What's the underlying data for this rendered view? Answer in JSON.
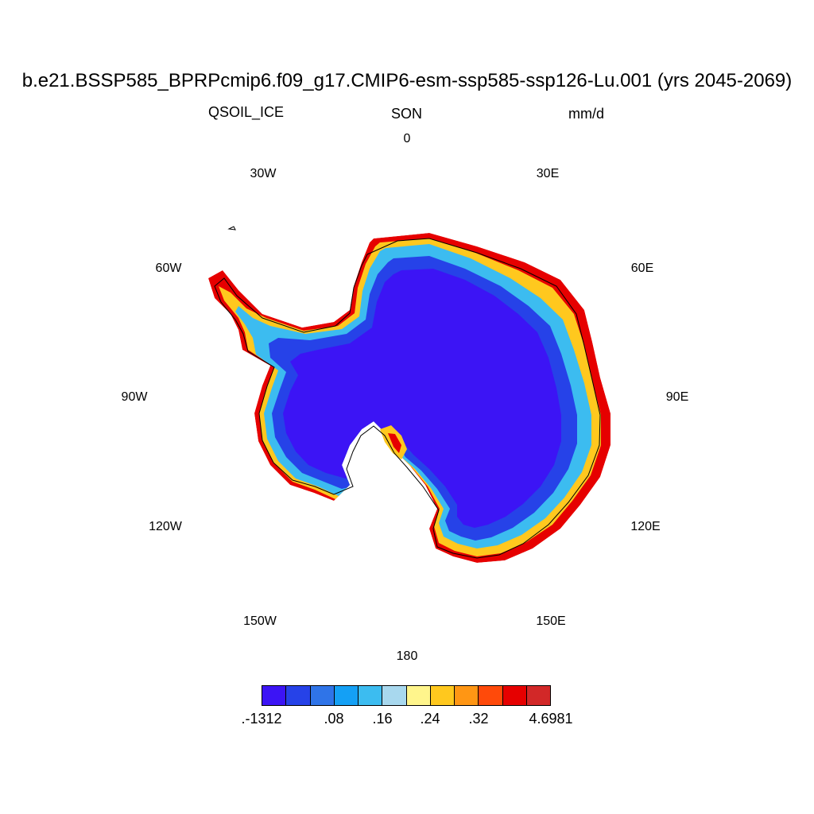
{
  "title": "b.e21.BSSP585_BPRPcmip6.f09_g17.CMIP6-esm-ssp585-ssp126-Lu.001 (yrs 2045-2069)",
  "variable": "QSOIL_ICE",
  "season": "SON",
  "units": "mm/d",
  "longitude_labels": [
    "0",
    "30E",
    "60E",
    "90E",
    "120E",
    "150E",
    "180",
    "150W",
    "120W",
    "90W",
    "60W",
    "30W"
  ],
  "colorbar": {
    "colors": [
      "#3c14f5",
      "#2642e8",
      "#2f74e8",
      "#14a0f5",
      "#3cbcf0",
      "#a8d8ee",
      "#fff58c",
      "#ffc81e",
      "#ff9614",
      "#ff4a0a",
      "#e60000",
      "#d22828"
    ],
    "labels": [
      ".-1312",
      ".08",
      ".16",
      ".24",
      ".32",
      "4.6981"
    ]
  },
  "regions": {
    "interior": "#3c14f5",
    "inner_band": "#2642e8",
    "outer_band": "#3cbcf0",
    "coast_warm": "#ffc81e",
    "coast_hot": "#e60000"
  }
}
